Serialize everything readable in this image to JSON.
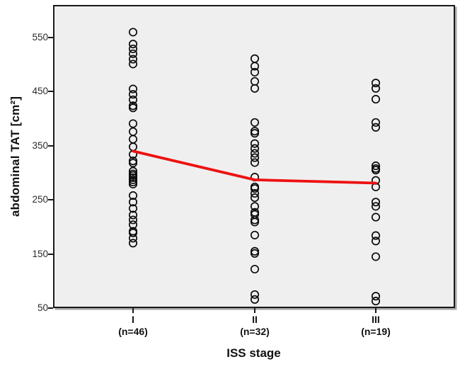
{
  "chart_data": {
    "type": "scatter",
    "title": "",
    "xlabel": "ISS stage",
    "ylabel": "abdominal TAT [cm²]",
    "yticks": [
      550,
      450,
      350,
      250,
      150,
      50
    ],
    "ylim": [
      50,
      610
    ],
    "grid": false,
    "legend": "none",
    "plot_background": "#efefef",
    "marker": {
      "shape": "open-circle",
      "stroke_color": "#0a0a0a"
    },
    "mean_line": {
      "color": "#ee1111",
      "values": [
        340,
        287,
        281
      ]
    },
    "groups": [
      {
        "label": "I",
        "n_label": "(n=46)",
        "n": 46,
        "values": [
          560,
          538,
          529,
          520,
          510,
          501,
          455,
          445,
          435,
          424,
          420,
          391,
          376,
          362,
          348,
          334,
          322,
          318,
          303,
          298,
          295,
          291,
          287,
          283,
          279,
          258,
          246,
          234,
          222,
          213,
          204,
          192,
          189,
          179,
          170
        ]
      },
      {
        "label": "II",
        "n_label": "(n=32)",
        "n": 32,
        "values": [
          511,
          497,
          486,
          469,
          456,
          393,
          377,
          373,
          354,
          345,
          336,
          328,
          319,
          292,
          274,
          271,
          262,
          254,
          238,
          227,
          223,
          213,
          209,
          185,
          155,
          151,
          122,
          75,
          66
        ]
      },
      {
        "label": "III",
        "n_label": "(n=19)",
        "n": 19,
        "values": [
          466,
          456,
          436,
          393,
          384,
          313,
          308,
          305,
          286,
          274,
          246,
          238,
          218,
          184,
          174,
          145,
          72,
          63
        ]
      }
    ]
  }
}
